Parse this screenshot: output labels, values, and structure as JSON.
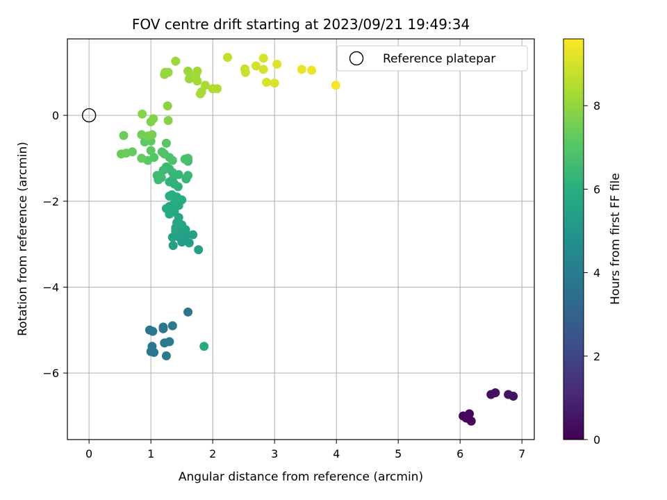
{
  "chart_data": {
    "type": "scatter",
    "title": "FOV centre drift starting at 2023/09/21 19:49:34",
    "xlabel": "Angular distance from reference (arcmin)",
    "ylabel": "Rotation from reference (arcmin)",
    "xlim": [
      -0.35,
      7.2
    ],
    "ylim": [
      -7.55,
      1.78
    ],
    "xticks": [
      0,
      1,
      2,
      3,
      4,
      5,
      6,
      7
    ],
    "yticks": [
      -6,
      -4,
      -2,
      0
    ],
    "grid": true,
    "colormap": "viridis",
    "colorbar": {
      "label": "Hours from first FF file",
      "range": [
        0,
        9.6
      ],
      "ticks": [
        0,
        2,
        4,
        6,
        8
      ]
    },
    "legend": {
      "placement": "upper-right",
      "entries": [
        {
          "label": "Reference platepar",
          "marker": "open-circle"
        }
      ]
    },
    "reference_point": {
      "x": 0,
      "y": 0
    },
    "series": [
      {
        "points": [
          {
            "x": 6.05,
            "y": -7.0,
            "h": 0.1
          },
          {
            "x": 6.15,
            "y": -6.95,
            "h": 0.15
          },
          {
            "x": 6.1,
            "y": -7.05,
            "h": 0.2
          },
          {
            "x": 6.18,
            "y": -7.12,
            "h": 0.25
          },
          {
            "x": 6.5,
            "y": -6.5,
            "h": 0.35
          },
          {
            "x": 6.57,
            "y": -6.46,
            "h": 0.4
          },
          {
            "x": 6.78,
            "y": -6.5,
            "h": 0.45
          },
          {
            "x": 6.86,
            "y": -6.54,
            "h": 0.5
          },
          {
            "x": 1.6,
            "y": -4.58,
            "h": 3.8
          },
          {
            "x": 1.35,
            "y": -4.9,
            "h": 3.9
          },
          {
            "x": 1.2,
            "y": -4.93,
            "h": 3.85
          },
          {
            "x": 1.2,
            "y": -4.97,
            "h": 3.8
          },
          {
            "x": 0.98,
            "y": -5.0,
            "h": 3.75
          },
          {
            "x": 1.03,
            "y": -5.03,
            "h": 3.8
          },
          {
            "x": 1.02,
            "y": -5.38,
            "h": 3.85
          },
          {
            "x": 1.22,
            "y": -5.3,
            "h": 3.9
          },
          {
            "x": 1.3,
            "y": -5.27,
            "h": 3.95
          },
          {
            "x": 1.0,
            "y": -5.5,
            "h": 3.8
          },
          {
            "x": 1.05,
            "y": -5.52,
            "h": 3.85
          },
          {
            "x": 1.25,
            "y": -5.6,
            "h": 3.9
          },
          {
            "x": 1.86,
            "y": -5.38,
            "h": 5.8
          },
          {
            "x": 1.58,
            "y": -2.78,
            "h": 5.3
          },
          {
            "x": 1.62,
            "y": -2.97,
            "h": 5.4
          },
          {
            "x": 1.77,
            "y": -3.13,
            "h": 5.4
          },
          {
            "x": 1.68,
            "y": -2.78,
            "h": 5.4
          },
          {
            "x": 1.36,
            "y": -3.03,
            "h": 5.4
          },
          {
            "x": 1.45,
            "y": -2.83,
            "h": 5.45
          },
          {
            "x": 1.5,
            "y": -2.95,
            "h": 5.4
          },
          {
            "x": 1.55,
            "y": -2.9,
            "h": 5.35
          },
          {
            "x": 1.4,
            "y": -2.7,
            "h": 5.5
          },
          {
            "x": 1.48,
            "y": -2.72,
            "h": 5.5
          },
          {
            "x": 1.56,
            "y": -2.66,
            "h": 5.55
          },
          {
            "x": 1.35,
            "y": -2.84,
            "h": 5.45
          },
          {
            "x": 1.4,
            "y": -2.62,
            "h": 5.6
          },
          {
            "x": 1.42,
            "y": -2.5,
            "h": 5.65
          },
          {
            "x": 1.5,
            "y": -2.55,
            "h": 5.65
          },
          {
            "x": 1.45,
            "y": -2.38,
            "h": 5.7
          },
          {
            "x": 1.38,
            "y": -2.25,
            "h": 5.75
          },
          {
            "x": 1.3,
            "y": -2.12,
            "h": 5.8
          },
          {
            "x": 1.33,
            "y": -2.2,
            "h": 5.8
          },
          {
            "x": 1.25,
            "y": -2.17,
            "h": 5.85
          },
          {
            "x": 1.3,
            "y": -2.3,
            "h": 5.85
          },
          {
            "x": 1.38,
            "y": -2.05,
            "h": 5.9
          },
          {
            "x": 1.5,
            "y": -1.97,
            "h": 5.95
          },
          {
            "x": 1.45,
            "y": -2.1,
            "h": 5.9
          },
          {
            "x": 1.3,
            "y": -1.88,
            "h": 6.0
          },
          {
            "x": 1.34,
            "y": -1.85,
            "h": 6.05
          },
          {
            "x": 1.42,
            "y": -1.9,
            "h": 6.0
          },
          {
            "x": 1.44,
            "y": -1.66,
            "h": 6.1
          },
          {
            "x": 1.38,
            "y": -1.6,
            "h": 6.15
          },
          {
            "x": 1.3,
            "y": -1.55,
            "h": 6.2
          },
          {
            "x": 1.35,
            "y": -1.5,
            "h": 6.2
          },
          {
            "x": 1.45,
            "y": -1.38,
            "h": 6.3
          },
          {
            "x": 1.57,
            "y": -1.48,
            "h": 6.3
          },
          {
            "x": 1.6,
            "y": -1.4,
            "h": 6.35
          },
          {
            "x": 1.35,
            "y": -1.33,
            "h": 6.4
          },
          {
            "x": 1.3,
            "y": -1.25,
            "h": 6.4
          },
          {
            "x": 1.25,
            "y": -1.2,
            "h": 6.45
          },
          {
            "x": 1.2,
            "y": -1.28,
            "h": 6.5
          },
          {
            "x": 1.1,
            "y": -1.4,
            "h": 6.55
          },
          {
            "x": 1.12,
            "y": -1.5,
            "h": 6.5
          },
          {
            "x": 1.17,
            "y": -1.45,
            "h": 6.55
          },
          {
            "x": 1.55,
            "y": -1.02,
            "h": 6.7
          },
          {
            "x": 1.6,
            "y": -1.0,
            "h": 6.75
          },
          {
            "x": 1.6,
            "y": -1.07,
            "h": 6.7
          },
          {
            "x": 1.35,
            "y": -1.05,
            "h": 6.8
          },
          {
            "x": 1.3,
            "y": -0.98,
            "h": 6.85
          },
          {
            "x": 1.22,
            "y": -0.9,
            "h": 6.9
          },
          {
            "x": 1.18,
            "y": -0.85,
            "h": 6.95
          },
          {
            "x": 1.25,
            "y": -0.65,
            "h": 7.0
          },
          {
            "x": 1.05,
            "y": -0.98,
            "h": 7.0
          },
          {
            "x": 1.0,
            "y": -0.82,
            "h": 7.1
          },
          {
            "x": 0.95,
            "y": -1.05,
            "h": 7.1
          },
          {
            "x": 1.0,
            "y": -0.6,
            "h": 7.2
          },
          {
            "x": 0.9,
            "y": -0.62,
            "h": 7.2
          },
          {
            "x": 0.85,
            "y": -1.0,
            "h": 7.25
          },
          {
            "x": 0.7,
            "y": -0.85,
            "h": 7.3
          },
          {
            "x": 0.6,
            "y": -0.88,
            "h": 7.35
          },
          {
            "x": 0.52,
            "y": -0.9,
            "h": 7.35
          },
          {
            "x": 0.56,
            "y": -0.47,
            "h": 7.4
          },
          {
            "x": 0.85,
            "y": -0.45,
            "h": 7.5
          },
          {
            "x": 0.95,
            "y": -0.48,
            "h": 7.55
          },
          {
            "x": 1.02,
            "y": -0.45,
            "h": 7.6
          },
          {
            "x": 1.0,
            "y": -0.15,
            "h": 7.7
          },
          {
            "x": 1.04,
            "y": -0.08,
            "h": 7.75
          },
          {
            "x": 0.86,
            "y": 0.03,
            "h": 7.8
          },
          {
            "x": 1.28,
            "y": -0.12,
            "h": 7.8
          },
          {
            "x": 1.27,
            "y": 0.22,
            "h": 7.85
          },
          {
            "x": 1.22,
            "y": 0.95,
            "h": 8.0
          },
          {
            "x": 1.23,
            "y": 1.0,
            "h": 8.0
          },
          {
            "x": 1.28,
            "y": 1.0,
            "h": 8.05
          },
          {
            "x": 1.4,
            "y": 1.26,
            "h": 8.1
          },
          {
            "x": 1.6,
            "y": 1.03,
            "h": 8.1
          },
          {
            "x": 1.62,
            "y": 0.85,
            "h": 8.15
          },
          {
            "x": 1.66,
            "y": 0.9,
            "h": 8.15
          },
          {
            "x": 1.75,
            "y": 1.03,
            "h": 8.2
          },
          {
            "x": 1.73,
            "y": 0.95,
            "h": 8.2
          },
          {
            "x": 1.75,
            "y": 0.8,
            "h": 8.25
          },
          {
            "x": 1.8,
            "y": 0.5,
            "h": 8.25
          },
          {
            "x": 1.82,
            "y": 0.55,
            "h": 8.3
          },
          {
            "x": 1.88,
            "y": 0.7,
            "h": 8.35
          },
          {
            "x": 2.0,
            "y": 0.62,
            "h": 8.4
          },
          {
            "x": 2.07,
            "y": 0.62,
            "h": 8.45
          },
          {
            "x": 2.24,
            "y": 1.35,
            "h": 8.7
          },
          {
            "x": 2.52,
            "y": 1.08,
            "h": 8.8
          },
          {
            "x": 2.53,
            "y": 1.0,
            "h": 8.85
          },
          {
            "x": 2.7,
            "y": 1.15,
            "h": 8.95
          },
          {
            "x": 2.82,
            "y": 1.33,
            "h": 9.0
          },
          {
            "x": 2.82,
            "y": 1.07,
            "h": 9.0
          },
          {
            "x": 2.87,
            "y": 0.77,
            "h": 9.05
          },
          {
            "x": 3.0,
            "y": 0.75,
            "h": 9.1
          },
          {
            "x": 3.04,
            "y": 1.19,
            "h": 9.15
          },
          {
            "x": 3.44,
            "y": 1.07,
            "h": 9.3
          },
          {
            "x": 3.6,
            "y": 1.05,
            "h": 9.35
          },
          {
            "x": 3.99,
            "y": 0.7,
            "h": 9.5
          }
        ]
      }
    ]
  }
}
